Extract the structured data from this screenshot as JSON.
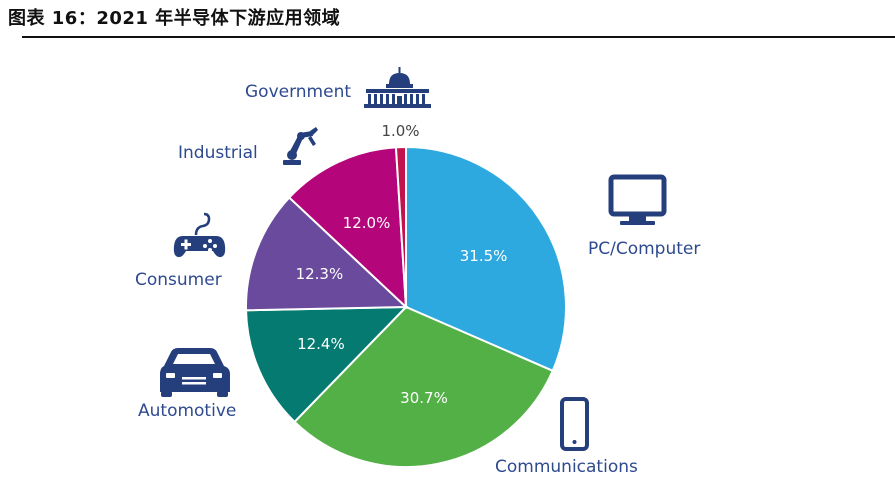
{
  "header": {
    "title": "图表 16：2021 年半导体下游应用领域"
  },
  "chart_data": {
    "type": "pie",
    "slices": [
      {
        "label": "PC/Computer",
        "value": 31.5,
        "display": "31.5%",
        "color": "#2ea9e0",
        "icon": "monitor-icon"
      },
      {
        "label": "Communications",
        "value": 30.7,
        "display": "30.7%",
        "color": "#53b046",
        "icon": "smartphone-icon"
      },
      {
        "label": "Automotive",
        "value": 12.4,
        "display": "12.4%",
        "color": "#047a70",
        "icon": "car-icon"
      },
      {
        "label": "Consumer",
        "value": 12.3,
        "display": "12.3%",
        "color": "#6a4a9c",
        "icon": "gamepad-icon"
      },
      {
        "label": "Industrial",
        "value": 12.0,
        "display": "12.0%",
        "color": "#b4057a",
        "icon": "robot-arm-icon"
      },
      {
        "label": "Government",
        "value": 1.0,
        "display": "1.0%",
        "color": "#c2134f",
        "icon": "capitol-icon"
      }
    ],
    "legend": "none",
    "labels_outside": true
  }
}
